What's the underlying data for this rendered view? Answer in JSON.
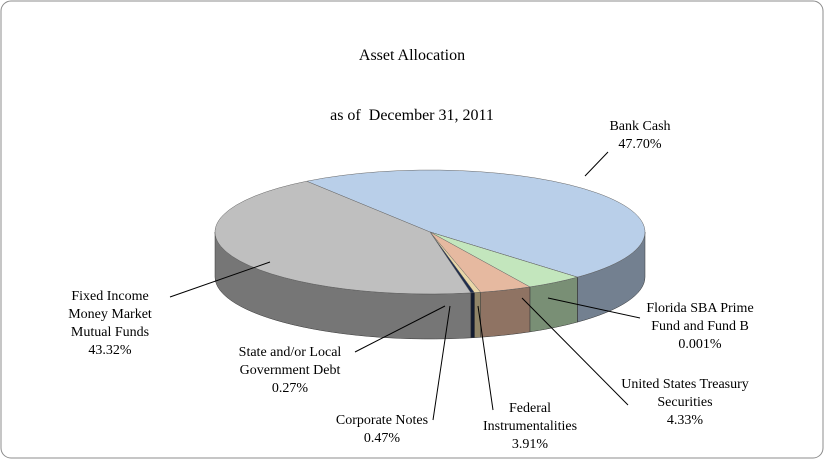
{
  "chart_data": {
    "type": "pie3d",
    "title": "Asset Allocation",
    "subtitle": "as of  December 31, 2011",
    "categories": [
      "Bank Cash",
      "Florida SBA Prime Fund and Fund B",
      "United States Treasury Securities",
      "Federal Instrumentalities",
      "Corporate Notes",
      "State and/or Local Government Debt",
      "Fixed Income Money Market Mutual Funds"
    ],
    "values": [
      47.7,
      0.001,
      4.33,
      3.91,
      0.47,
      0.27,
      43.32
    ],
    "value_labels": [
      "47.70%",
      "0.001%",
      "4.33%",
      "3.91%",
      "0.47%",
      "0.27%",
      "43.32%"
    ],
    "colors": [
      "#b9cfe9",
      "#8064a2",
      "#c3e6bd",
      "#e6b9a0",
      "#e8d6a8",
      "#1f2d4e",
      "#bfbfbf"
    ]
  }
}
